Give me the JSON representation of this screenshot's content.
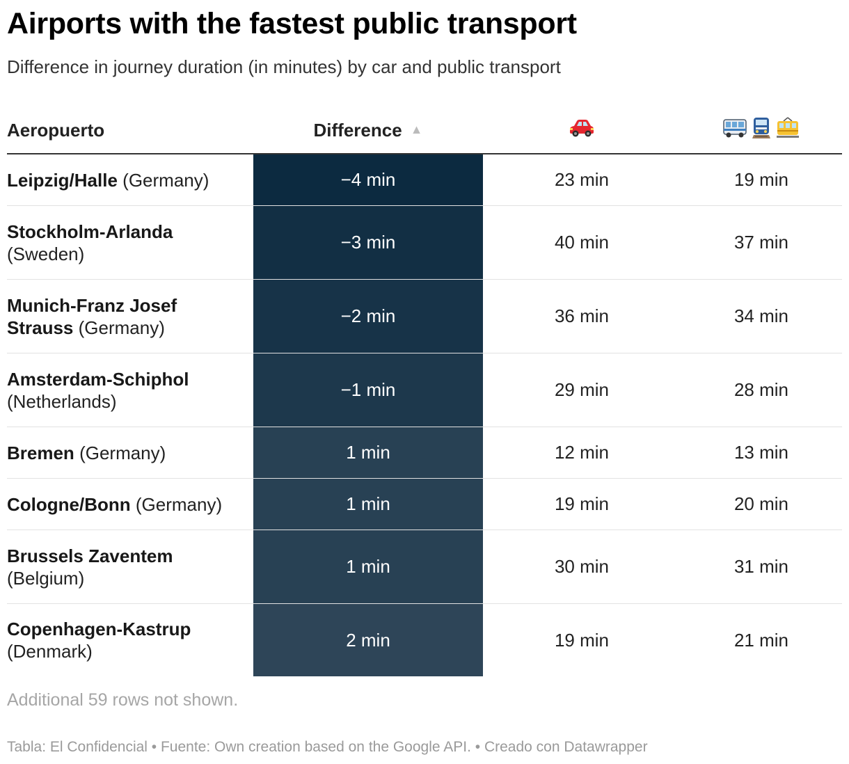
{
  "title": "Airports with the fastest public transport",
  "subtitle": "Difference in journey duration (in minutes) by car and public transport",
  "columns": {
    "airport": "Aeropuerto",
    "difference": "Difference",
    "car_icon": "car-icon",
    "public_transport_icons": [
      "bus-icon",
      "train-icon",
      "tram-icon"
    ]
  },
  "rows": [
    {
      "name": "Leipzig/Halle",
      "country": "(Germany)",
      "difference": "−4 min",
      "car": "23 min",
      "public": "19 min"
    },
    {
      "name": "Stockholm-Arlanda",
      "country": "(Sweden)",
      "difference": "−3 min",
      "car": "40 min",
      "public": "37 min"
    },
    {
      "name": "Munich-Franz Josef Strauss",
      "country": "(Germany)",
      "difference": "−2 min",
      "car": "36 min",
      "public": "34 min"
    },
    {
      "name": "Amsterdam-Schiphol",
      "country": "(Netherlands)",
      "difference": "−1 min",
      "car": "29 min",
      "public": "28 min"
    },
    {
      "name": "Bremen",
      "country": "(Germany)",
      "difference": "1 min",
      "car": "12 min",
      "public": "13 min"
    },
    {
      "name": "Cologne/Bonn",
      "country": "(Germany)",
      "difference": "1 min",
      "car": "19 min",
      "public": "20 min"
    },
    {
      "name": "Brussels Zaventem",
      "country": "(Belgium)",
      "difference": "1 min",
      "car": "30 min",
      "public": "31 min"
    },
    {
      "name": "Copenhagen-Kastrup",
      "country": "(Denmark)",
      "difference": "2 min",
      "car": "19 min",
      "public": "21 min"
    }
  ],
  "note": "Additional 59 rows not shown.",
  "footer": "Tabla: El Confidencial • Fuente: Own creation based on the Google API. • Creado con Datawrapper",
  "colors": {
    "heat_min": "#0c2a40",
    "heat_max": "#2e4558",
    "header_rule": "#333333"
  },
  "chart_data": {
    "type": "table",
    "title": "Airports with the fastest public transport",
    "subtitle": "Difference in journey duration (in minutes) by car and public transport",
    "columns": [
      "Aeropuerto",
      "Difference",
      "Car",
      "Public transport"
    ],
    "sorted_by": "Difference (ascending)",
    "series": [
      {
        "name": "Difference",
        "values": [
          -4,
          -3,
          -2,
          -1,
          1,
          1,
          1,
          2
        ]
      },
      {
        "name": "Car",
        "values": [
          23,
          40,
          36,
          29,
          12,
          19,
          30,
          19
        ]
      },
      {
        "name": "Public transport",
        "values": [
          19,
          37,
          34,
          28,
          13,
          20,
          31,
          21
        ]
      }
    ],
    "categories": [
      "Leipzig/Halle",
      "Stockholm-Arlanda",
      "Munich-Franz Josef Strauss",
      "Amsterdam-Schiphol",
      "Bremen",
      "Cologne/Bonn",
      "Brussels Zaventem",
      "Copenhagen-Kastrup"
    ]
  }
}
